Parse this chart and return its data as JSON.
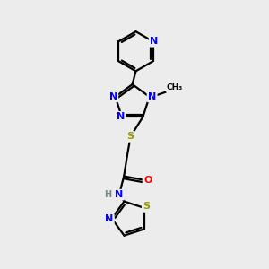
{
  "bg_color": "#ececec",
  "atom_colors": {
    "N": "#0000ff",
    "O": "#ff0000",
    "S": "#999900",
    "C": "#000000",
    "H": "#778888"
  },
  "bond_color": "#000000",
  "bond_width": 1.6,
  "fig_width": 3.0,
  "fig_height": 3.0,
  "dpi": 100,
  "xlim": [
    0,
    10
  ],
  "ylim": [
    0,
    10
  ]
}
